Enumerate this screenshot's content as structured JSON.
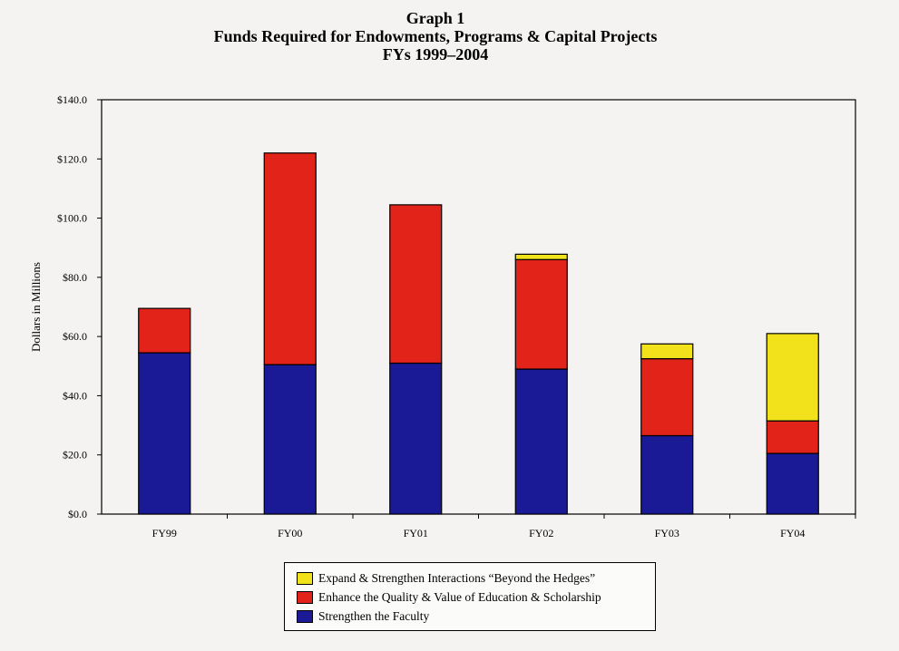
{
  "chart_data": {
    "type": "bar",
    "stacked": true,
    "title": "Graph 1",
    "subtitle": "Funds Required for Endowments, Programs & Capital Projects",
    "subtitle2": "FYs 1999–2004",
    "xlabel": "",
    "ylabel": "Dollars in Millions",
    "ylim": [
      0,
      140
    ],
    "yticks": [
      "$0.0",
      "$20.0",
      "$40.0",
      "$60.0",
      "$80.0",
      "$100.0",
      "$120.0",
      "$140.0"
    ],
    "categories": [
      "FY99",
      "FY00",
      "FY01",
      "FY02",
      "FY03",
      "FY04"
    ],
    "series": [
      {
        "name": "Strengthen the Faculty",
        "color": "#1b1a96",
        "values": [
          54.5,
          50.5,
          51.0,
          49.0,
          26.5,
          20.5
        ]
      },
      {
        "name": "Enhance the Quality & Value of Education & Scholarship",
        "color": "#e2231a",
        "values": [
          15.0,
          71.5,
          53.5,
          37.0,
          26.0,
          11.0
        ]
      },
      {
        "name": "Expand & Strengthen Interactions “Beyond the Hedges”",
        "color": "#f2e21c",
        "values": [
          0,
          0,
          0,
          1.8,
          5.0,
          29.5
        ]
      }
    ],
    "legend_position": "bottom",
    "grid": false
  }
}
